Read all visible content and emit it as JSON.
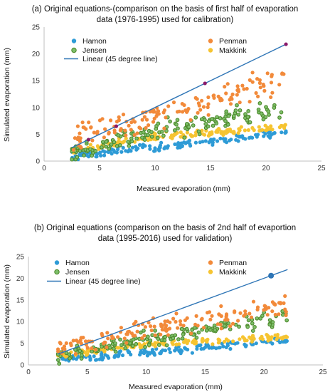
{
  "colors": {
    "hamon": "#2e9bd6",
    "penman": "#f28a3a",
    "jensen_stroke": "#4f8a2e",
    "jensen_fill": "#7dbf6a",
    "makkink": "#f6c431",
    "line": "#2e75b6",
    "marker_a": "#8b1a6a",
    "marker_b": "#2e75b6"
  },
  "chart_data": [
    {
      "type": "scatter",
      "title_line1": "(a) Original equations-(comparison on the basis of first half of evaporation",
      "title_line2": "data (1976-1995) used for calibration)",
      "xlabel": "Measured evaporation (mm)",
      "ylabel": "Simulated evaporation (mm)",
      "xlim": [
        0,
        25
      ],
      "ylim": [
        0,
        25
      ],
      "xticks": [
        0,
        5,
        10,
        15,
        20,
        25
      ],
      "yticks": [
        0,
        5,
        10,
        15,
        20,
        25
      ],
      "grid": false,
      "legend": [
        "Hamon",
        "Penman",
        "Jensen",
        "Makkink",
        "Linear (45 degree line)"
      ],
      "legend_placement": "top",
      "x_range_points": [
        2.5,
        21.8
      ],
      "series": [
        {
          "name": "Hamon",
          "trend": [
            [
              2.5,
              1.0
            ],
            [
              10,
              2.5
            ],
            [
              21.8,
              5.4
            ]
          ],
          "spread": 0.6
        },
        {
          "name": "Penman",
          "trend": [
            [
              2.5,
              4.0
            ],
            [
              10,
              8.5
            ],
            [
              21.8,
              15.0
            ]
          ],
          "spread": 1.8
        },
        {
          "name": "Jensen",
          "trend": [
            [
              2.5,
              1.5
            ],
            [
              10,
              5.5
            ],
            [
              21.8,
              10.0
            ]
          ],
          "spread": 1.3
        },
        {
          "name": "Makkink",
          "trend": [
            [
              2.5,
              2.0
            ],
            [
              10,
              4.5
            ],
            [
              21.8,
              6.3
            ]
          ],
          "spread": 0.5
        }
      ],
      "line_45": [
        [
          2.5,
          2.5
        ],
        [
          21.8,
          21.8
        ]
      ],
      "highlight_points": [
        [
          4.0,
          4.0
        ],
        [
          6.5,
          6.5
        ],
        [
          14.5,
          14.5
        ],
        [
          21.8,
          21.8
        ]
      ]
    },
    {
      "type": "scatter",
      "title_line1": "(b) Original equations (comparison on the basis of 2nd half of evaportion",
      "title_line2": "data (1995-2016) used for validation)",
      "xlabel": "Measured evaporation (mm)",
      "ylabel": "Simulated evaporation (mm)",
      "xlim": [
        0,
        25
      ],
      "ylim": [
        0,
        25
      ],
      "xticks": [
        0,
        5,
        10,
        15,
        20,
        25
      ],
      "yticks": [
        0,
        5,
        10,
        15,
        20,
        25
      ],
      "grid": false,
      "legend": [
        "Hamon",
        "Penman",
        "Jensen",
        "Makkink",
        "Linear (45 degree line)"
      ],
      "legend_placement": "top",
      "x_range_points": [
        2.5,
        22.0
      ],
      "series": [
        {
          "name": "Hamon",
          "trend": [
            [
              2.5,
              1.2
            ],
            [
              10,
              2.8
            ],
            [
              22.0,
              5.8
            ]
          ],
          "spread": 0.6
        },
        {
          "name": "Penman",
          "trend": [
            [
              2.5,
              3.8
            ],
            [
              10,
              8.0
            ],
            [
              22.0,
              14.0
            ]
          ],
          "spread": 1.8
        },
        {
          "name": "Jensen",
          "trend": [
            [
              2.5,
              1.8
            ],
            [
              10,
              6.0
            ],
            [
              22.0,
              11.0
            ]
          ],
          "spread": 1.3
        },
        {
          "name": "Makkink",
          "trend": [
            [
              2.5,
              2.2
            ],
            [
              10,
              4.8
            ],
            [
              22.0,
              6.5
            ]
          ],
          "spread": 0.5
        }
      ],
      "line_45": [
        [
          2.5,
          2.5
        ],
        [
          22.0,
          22.0
        ]
      ],
      "highlight_points": [
        [
          20.6,
          20.6
        ]
      ]
    }
  ]
}
